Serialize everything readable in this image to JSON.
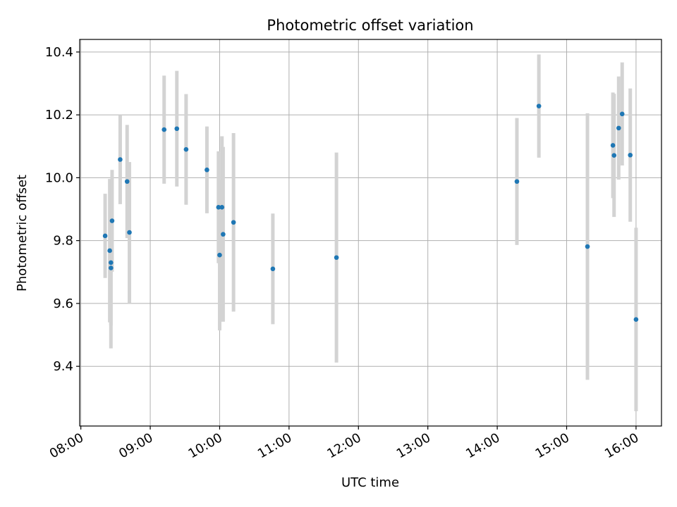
{
  "chart_data": {
    "type": "scatter",
    "title": "Photometric offset variation",
    "xlabel": "UTC time",
    "ylabel": "Photometric offset",
    "x_unit": "hours UTC",
    "xlim": [
      "07:59",
      "16:22"
    ],
    "ylim": [
      9.21,
      10.44
    ],
    "xticks": [
      "08:00",
      "09:00",
      "10:00",
      "11:00",
      "12:00",
      "13:00",
      "14:00",
      "15:00",
      "16:00"
    ],
    "yticks": [
      9.4,
      9.6,
      9.8,
      10.0,
      10.2,
      10.4
    ],
    "ytick_labels": [
      "9.4",
      "9.6",
      "9.8",
      "10.0",
      "10.2",
      "10.4"
    ],
    "grid": true,
    "marker_color": "#1f77b4",
    "errorbar_color": "#d3d3d3",
    "points": [
      {
        "time": "08:21",
        "y": 9.815,
        "err": 0.134
      },
      {
        "time": "08:25",
        "y": 9.768,
        "err": 0.228
      },
      {
        "time": "08:26",
        "y": 9.73,
        "err": 0.2
      },
      {
        "time": "08:26",
        "y": 9.713,
        "err": 0.256
      },
      {
        "time": "08:27",
        "y": 9.863,
        "err": 0.162
      },
      {
        "time": "08:34",
        "y": 10.058,
        "err": 0.142
      },
      {
        "time": "08:40",
        "y": 9.988,
        "err": 0.18
      },
      {
        "time": "08:42",
        "y": 9.826,
        "err": 0.224
      },
      {
        "time": "09:12",
        "y": 10.153,
        "err": 0.172
      },
      {
        "time": "09:23",
        "y": 10.156,
        "err": 0.184
      },
      {
        "time": "09:31",
        "y": 10.09,
        "err": 0.176
      },
      {
        "time": "09:49",
        "y": 10.025,
        "err": 0.138
      },
      {
        "time": "09:59",
        "y": 9.906,
        "err": 0.178
      },
      {
        "time": "10:00",
        "y": 9.754,
        "err": 0.24
      },
      {
        "time": "10:02",
        "y": 9.906,
        "err": 0.226
      },
      {
        "time": "10:03",
        "y": 9.82,
        "err": 0.278
      },
      {
        "time": "10:12",
        "y": 9.858,
        "err": 0.284
      },
      {
        "time": "10:46",
        "y": 9.71,
        "err": 0.176
      },
      {
        "time": "11:41",
        "y": 9.746,
        "err": 0.334
      },
      {
        "time": "14:17",
        "y": 9.988,
        "err": 0.202
      },
      {
        "time": "14:36",
        "y": 10.228,
        "err": 0.164
      },
      {
        "time": "15:18",
        "y": 9.781,
        "err": 0.424
      },
      {
        "time": "15:40",
        "y": 10.103,
        "err": 0.168
      },
      {
        "time": "15:41",
        "y": 10.071,
        "err": 0.196
      },
      {
        "time": "15:45",
        "y": 10.158,
        "err": 0.164
      },
      {
        "time": "15:48",
        "y": 10.203,
        "err": 0.164
      },
      {
        "time": "15:55",
        "y": 10.072,
        "err": 0.212
      },
      {
        "time": "16:00",
        "y": 9.549,
        "err": 0.292
      }
    ]
  }
}
